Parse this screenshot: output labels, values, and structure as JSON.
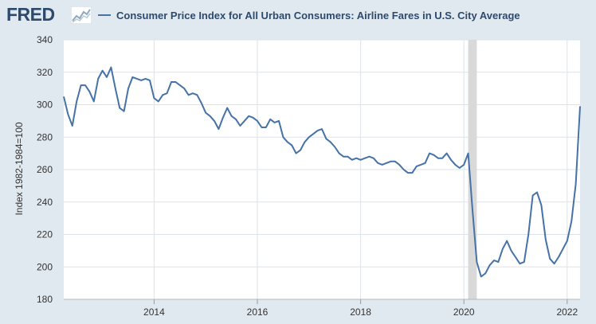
{
  "brand": {
    "logo_text": "FRED"
  },
  "colors": {
    "series": "#4572a7",
    "background": "#e1e9f0",
    "recession": "#d9d9d9",
    "grid": "#dde3ea"
  },
  "chart_data": {
    "type": "line",
    "title": "Consumer Price Index for All Urban Consumers: Airline Fares in U.S. City Average",
    "ylabel": "Index 1982-1984=100",
    "ylim": [
      180,
      340
    ],
    "xlim": [
      2012.25,
      2022.25
    ],
    "y_ticks": [
      "180",
      "200",
      "220",
      "240",
      "260",
      "280",
      "300",
      "320",
      "340"
    ],
    "x_ticks": [
      "2014",
      "2016",
      "2018",
      "2020",
      "2022"
    ],
    "recession": {
      "start": 2020.083,
      "end": 2020.25
    },
    "grid": true,
    "legend_placement": "top",
    "series": [
      {
        "name": "Consumer Price Index for All Urban Consumers: Airline Fares in U.S. City Average",
        "x": [
          2012.25,
          2012.333,
          2012.417,
          2012.5,
          2012.583,
          2012.667,
          2012.75,
          2012.833,
          2012.917,
          2013.0,
          2013.083,
          2013.167,
          2013.25,
          2013.333,
          2013.417,
          2013.5,
          2013.583,
          2013.667,
          2013.75,
          2013.833,
          2013.917,
          2014.0,
          2014.083,
          2014.167,
          2014.25,
          2014.333,
          2014.417,
          2014.5,
          2014.583,
          2014.667,
          2014.75,
          2014.833,
          2014.917,
          2015.0,
          2015.083,
          2015.167,
          2015.25,
          2015.333,
          2015.417,
          2015.5,
          2015.583,
          2015.667,
          2015.75,
          2015.833,
          2015.917,
          2016.0,
          2016.083,
          2016.167,
          2016.25,
          2016.333,
          2016.417,
          2016.5,
          2016.583,
          2016.667,
          2016.75,
          2016.833,
          2016.917,
          2017.0,
          2017.083,
          2017.167,
          2017.25,
          2017.333,
          2017.417,
          2017.5,
          2017.583,
          2017.667,
          2017.75,
          2017.833,
          2017.917,
          2018.0,
          2018.083,
          2018.167,
          2018.25,
          2018.333,
          2018.417,
          2018.5,
          2018.583,
          2018.667,
          2018.75,
          2018.833,
          2018.917,
          2019.0,
          2019.083,
          2019.167,
          2019.25,
          2019.333,
          2019.417,
          2019.5,
          2019.583,
          2019.667,
          2019.75,
          2019.833,
          2019.917,
          2020.0,
          2020.083,
          2020.167,
          2020.25,
          2020.333,
          2020.417,
          2020.5,
          2020.583,
          2020.667,
          2020.75,
          2020.833,
          2020.917,
          2021.0,
          2021.083,
          2021.167,
          2021.25,
          2021.333,
          2021.417,
          2021.5,
          2021.583,
          2021.667,
          2021.75,
          2021.833,
          2021.917,
          2022.0,
          2022.083,
          2022.167,
          2022.25
        ],
        "y": [
          305,
          294,
          287,
          302,
          312,
          312,
          308,
          302,
          316,
          321,
          317,
          323,
          310,
          298,
          296,
          310,
          317,
          316,
          315,
          316,
          315,
          304,
          302,
          306,
          307,
          314,
          314,
          312,
          310,
          306,
          307,
          306,
          301,
          295,
          293,
          290,
          285,
          292,
          298,
          293,
          291,
          287,
          290,
          293,
          292,
          290,
          286,
          286,
          291,
          289,
          290,
          280,
          277,
          275,
          270,
          272,
          277,
          280,
          282,
          284,
          285,
          279,
          277,
          274,
          270,
          268,
          268,
          266,
          267,
          266,
          267,
          268,
          267,
          264,
          263,
          264,
          265,
          265,
          263,
          260,
          258,
          258,
          262,
          263,
          264,
          270,
          269,
          267,
          267,
          270,
          266,
          263,
          261,
          263,
          270,
          235,
          203,
          194,
          196,
          201,
          204,
          203,
          211,
          216,
          210,
          206,
          202,
          203,
          220,
          244,
          246,
          238,
          217,
          205,
          202,
          206,
          211,
          216,
          228,
          251,
          299
        ]
      }
    ]
  }
}
